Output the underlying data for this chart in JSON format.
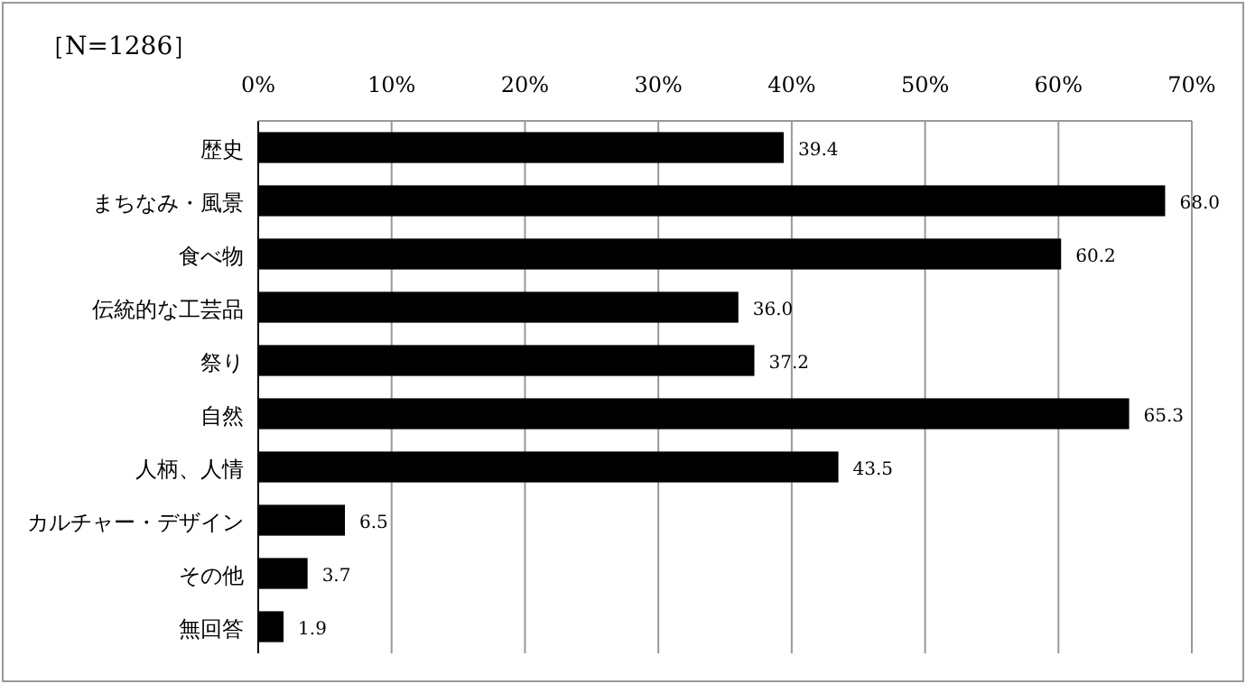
{
  "chart_data": {
    "type": "bar",
    "orientation": "horizontal",
    "categories": [
      "歴史",
      "まちなみ・風景",
      "食べ物",
      "伝統的な工芸品",
      "祭り",
      "自然",
      "人柄、人情",
      "カルチャー・デザイン",
      "その他",
      "無回答"
    ],
    "values": [
      39.4,
      68.0,
      60.2,
      36.0,
      37.2,
      65.3,
      43.5,
      6.5,
      3.7,
      1.9
    ],
    "value_labels": [
      "39.4",
      "68.0",
      "60.2",
      "36.0",
      "37.2",
      "65.3",
      "43.5",
      "6.5",
      "3.7",
      "1.9"
    ],
    "color": "#000000",
    "xlim": [
      0,
      70
    ],
    "xticks": [
      {
        "value": 0,
        "label": "0%"
      },
      {
        "value": 10,
        "label": "10%"
      },
      {
        "value": 20,
        "label": "20%"
      },
      {
        "value": 30,
        "label": "30%"
      },
      {
        "value": 40,
        "label": "40%"
      },
      {
        "value": 50,
        "label": "50%"
      },
      {
        "value": 60,
        "label": "60%"
      },
      {
        "value": 70,
        "label": "70%"
      }
    ],
    "grid": "x",
    "annotations": [
      "［N=1286］"
    ]
  }
}
